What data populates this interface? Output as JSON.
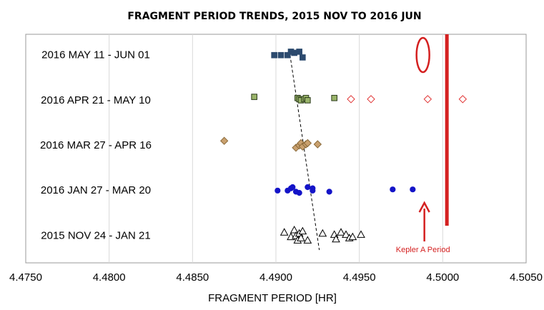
{
  "chart_data": {
    "type": "scatter",
    "title": "FRAGMENT PERIOD TRENDS, 2015 NOV TO 2016 JUN",
    "xlabel": "FRAGMENT PERIOD [HR]",
    "ylabel": "",
    "xlim": [
      4.475,
      4.505
    ],
    "x_ticks": [
      "4.4750",
      "4.4800",
      "4.4850",
      "4.4900",
      "4.4950",
      "4.5000",
      "4.5050"
    ],
    "grid": "vertical",
    "categories": [
      "2015 NOV 24 - JAN 21",
      "2016 JAN 27 - MAR 20",
      "2016 MAR 27 - APR 16",
      "2016 APR 21 - MAY 10",
      "2016 MAY 11 - JUN 01"
    ],
    "series": [
      {
        "category": "2015 NOV 24 - JAN 21",
        "marker": "triangle",
        "color": "#000000",
        "fill": "#ffffff",
        "points": [
          {
            "x": 4.4905,
            "jitter": -0.2
          },
          {
            "x": 4.4909,
            "jitter": 0.2
          },
          {
            "x": 4.4911,
            "jitter": -0.4
          },
          {
            "x": 4.4912,
            "jitter": 0.1
          },
          {
            "x": 4.4913,
            "jitter": 0.5
          },
          {
            "x": 4.4914,
            "jitter": -0.1
          },
          {
            "x": 4.4915,
            "jitter": 0.3
          },
          {
            "x": 4.4916,
            "jitter": -0.3
          },
          {
            "x": 4.4919,
            "jitter": 0.5
          },
          {
            "x": 4.4928,
            "jitter": -0.1
          },
          {
            "x": 4.4935,
            "jitter": 0.0
          },
          {
            "x": 4.4936,
            "jitter": 0.4
          },
          {
            "x": 4.4939,
            "jitter": -0.2
          },
          {
            "x": 4.4942,
            "jitter": 0.0
          },
          {
            "x": 4.4944,
            "jitter": 0.3
          },
          {
            "x": 4.4946,
            "jitter": 0.2
          },
          {
            "x": 4.4951,
            "jitter": 0.0
          }
        ]
      },
      {
        "category": "2016 JAN 27 - MAR 20",
        "marker": "circle",
        "color": "#1414c8",
        "fill": "#1414c8",
        "points": [
          {
            "x": 4.4901,
            "jitter": 0.1
          },
          {
            "x": 4.4907,
            "jitter": 0.1
          },
          {
            "x": 4.4909,
            "jitter": -0.1
          },
          {
            "x": 4.491,
            "jitter": -0.2
          },
          {
            "x": 4.4912,
            "jitter": 0.2
          },
          {
            "x": 4.4914,
            "jitter": 0.3
          },
          {
            "x": 4.4919,
            "jitter": -0.2
          },
          {
            "x": 4.4922,
            "jitter": 0.1
          },
          {
            "x": 4.4922,
            "jitter": -0.1
          },
          {
            "x": 4.4932,
            "jitter": 0.2
          },
          {
            "x": 4.497,
            "jitter": 0.0
          },
          {
            "x": 4.4982,
            "jitter": 0.0
          }
        ]
      },
      {
        "category": "2016 MAR 27 - APR 16",
        "marker": "diamond",
        "color": "#8a6a3a",
        "fill": "#c9a06e",
        "points": [
          {
            "x": 4.4869,
            "jitter": -0.3
          },
          {
            "x": 4.4912,
            "jitter": 0.3
          },
          {
            "x": 4.4914,
            "jitter": 0.1
          },
          {
            "x": 4.4915,
            "jitter": -0.1
          },
          {
            "x": 4.4916,
            "jitter": 0.2
          },
          {
            "x": 4.4918,
            "jitter": 0.0
          },
          {
            "x": 4.4919,
            "jitter": -0.1
          },
          {
            "x": 4.4925,
            "jitter": 0.0
          }
        ]
      },
      {
        "category": "2016 APR 21 - MAY 10",
        "marker": "square",
        "color": "#2a3a1a",
        "fill": "#9ab46a",
        "points": [
          {
            "x": 4.4887,
            "jitter": -0.2
          },
          {
            "x": 4.4913,
            "jitter": -0.1
          },
          {
            "x": 4.4914,
            "jitter": 0.0
          },
          {
            "x": 4.4915,
            "jitter": 0.1
          },
          {
            "x": 4.4917,
            "jitter": 0.0
          },
          {
            "x": 4.4918,
            "jitter": -0.1
          },
          {
            "x": 4.4919,
            "jitter": 0.1
          },
          {
            "x": 4.4935,
            "jitter": -0.1
          }
        ]
      },
      {
        "category": "2016 APR 21 - MAY 10",
        "marker": "diamond-open",
        "color": "#e03030",
        "fill": "#ffffff",
        "points": [
          {
            "x": 4.4945,
            "jitter": 0.0
          },
          {
            "x": 4.4957,
            "jitter": 0.0
          },
          {
            "x": 4.4991,
            "jitter": 0.0
          },
          {
            "x": 4.5012,
            "jitter": 0.0
          }
        ]
      },
      {
        "category": "2016 MAY 11 - JUN 01",
        "marker": "square",
        "color": "#2c4a6e",
        "fill": "#2c4a6e",
        "points": [
          {
            "x": 4.4899,
            "jitter": 0.1
          },
          {
            "x": 4.4903,
            "jitter": 0.1
          },
          {
            "x": 4.4907,
            "jitter": 0.1
          },
          {
            "x": 4.4909,
            "jitter": -0.2
          },
          {
            "x": 4.4911,
            "jitter": -0.1
          },
          {
            "x": 4.4914,
            "jitter": -0.2
          },
          {
            "x": 4.4916,
            "jitter": 0.3
          }
        ]
      }
    ],
    "trend_line": {
      "x_start": 4.4908,
      "x_end": 4.4926,
      "style": "dashed",
      "color": "#000000"
    },
    "reference_line": {
      "x": 4.50025,
      "color": "#d42020"
    },
    "annotation": {
      "label": "Kepler A Period",
      "x": 4.4989,
      "color": "#d42020"
    }
  }
}
